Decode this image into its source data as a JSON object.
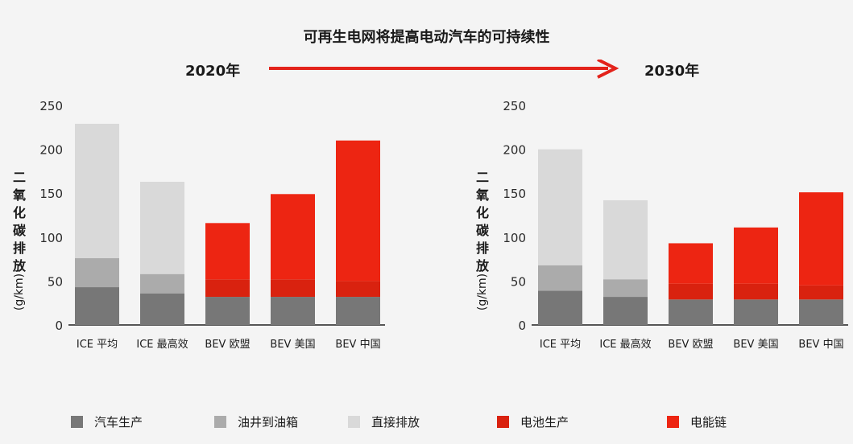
{
  "title": "可再生电网将提高电动汽车的可持续性",
  "year_left": "2020年",
  "year_right": "2030年",
  "ylabel_text": "二氧化碳排放",
  "ylabel_unit": "(g/km)",
  "colors": {
    "vehicle_production": "#777777",
    "well_to_tank": "#ababab",
    "direct_emission": "#d9d9d9",
    "battery_production": "#d9220f",
    "electricity_chain": "#ed2512",
    "arrow": "#e3231b"
  },
  "legend": [
    {
      "label": "汽车生产",
      "color": "#777777"
    },
    {
      "label": "油井到油箱",
      "color": "#ababab"
    },
    {
      "label": "直接排放",
      "color": "#d9d9d9"
    },
    {
      "label": "电池生产",
      "color": "#d9220f"
    },
    {
      "label": "电能链",
      "color": "#ed2512"
    }
  ],
  "chart_data": [
    {
      "type": "bar",
      "stacked": true,
      "year": "2020年",
      "categories": [
        "ICE 平均",
        "ICE 最高效",
        "BEV 欧盟",
        "BEV 美国",
        "BEV 中国"
      ],
      "ylim": [
        0,
        250
      ],
      "yticks": [
        0,
        50,
        100,
        150,
        200,
        250
      ],
      "series": [
        {
          "name": "汽车生产",
          "color": "#777777",
          "values": [
            43,
            36,
            32,
            32,
            32
          ]
        },
        {
          "name": "油井到油箱",
          "color": "#ababab",
          "values": [
            33,
            22,
            0,
            0,
            0
          ]
        },
        {
          "name": "直接排放",
          "color": "#d9d9d9",
          "values": [
            153,
            105,
            0,
            0,
            0
          ]
        },
        {
          "name": "电池生产",
          "color": "#d9220f",
          "values": [
            0,
            0,
            20,
            20,
            18
          ]
        },
        {
          "name": "电能链",
          "color": "#ed2512",
          "values": [
            0,
            0,
            64,
            97,
            160
          ]
        }
      ]
    },
    {
      "type": "bar",
      "stacked": true,
      "year": "2030年",
      "categories": [
        "ICE 平均",
        "ICE 最高效",
        "BEV 欧盟",
        "BEV 美国",
        "BEV 中国"
      ],
      "ylim": [
        0,
        250
      ],
      "yticks": [
        0,
        50,
        100,
        150,
        200,
        250
      ],
      "series": [
        {
          "name": "汽车生产",
          "color": "#777777",
          "values": [
            39,
            32,
            29,
            29,
            29
          ]
        },
        {
          "name": "油井到油箱",
          "color": "#ababab",
          "values": [
            29,
            20,
            0,
            0,
            0
          ]
        },
        {
          "name": "直接排放",
          "color": "#d9d9d9",
          "values": [
            132,
            90,
            0,
            0,
            0
          ]
        },
        {
          "name": "电池生产",
          "color": "#d9220f",
          "values": [
            0,
            0,
            18,
            18,
            16
          ]
        },
        {
          "name": "电能链",
          "color": "#ed2512",
          "values": [
            0,
            0,
            46,
            64,
            106
          ]
        }
      ]
    }
  ]
}
